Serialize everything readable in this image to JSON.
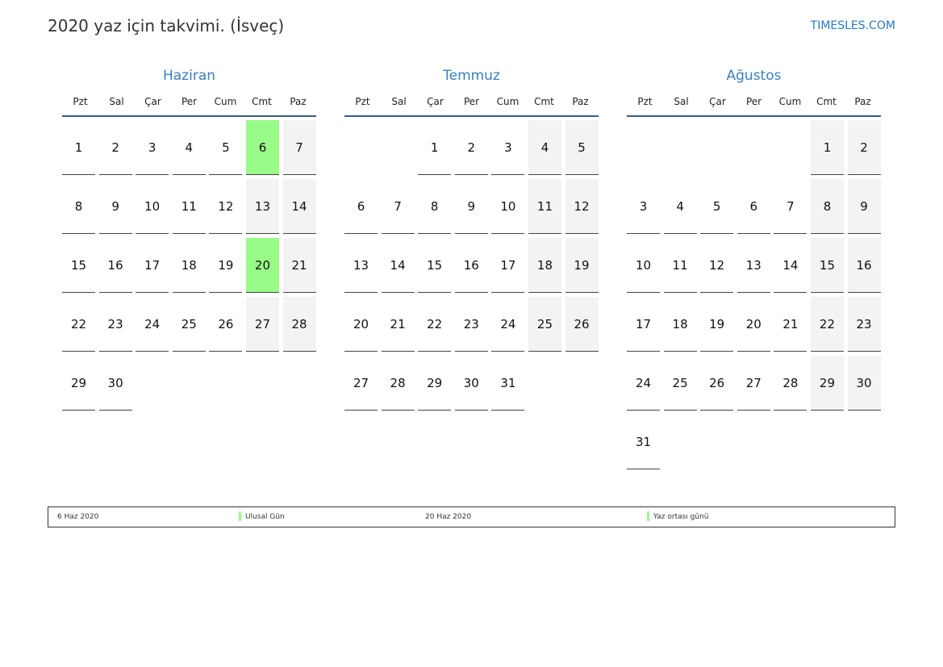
{
  "header": {
    "title": "2020 yaz için takvimi. (İsveç)",
    "brand": "TIMESLES.COM"
  },
  "weekdays": [
    "Pzt",
    "Sal",
    "Çar",
    "Per",
    "Cum",
    "Cmt",
    "Paz"
  ],
  "colors": {
    "accent": "#3a80c0",
    "holiday": "#99fb88",
    "weekend": "#f3f3f3"
  },
  "months": [
    {
      "name": "Haziran",
      "offset": 0,
      "days": 30,
      "highlights": [
        6,
        20
      ]
    },
    {
      "name": "Temmuz",
      "offset": 2,
      "days": 31,
      "highlights": []
    },
    {
      "name": "Ağustos",
      "offset": 5,
      "days": 31,
      "highlights": []
    }
  ],
  "legend": [
    {
      "date": "6 Haz 2020",
      "name": "Ulusal Gün"
    },
    {
      "date": "20 Haz 2020",
      "name": "Yaz ortası günü"
    }
  ]
}
